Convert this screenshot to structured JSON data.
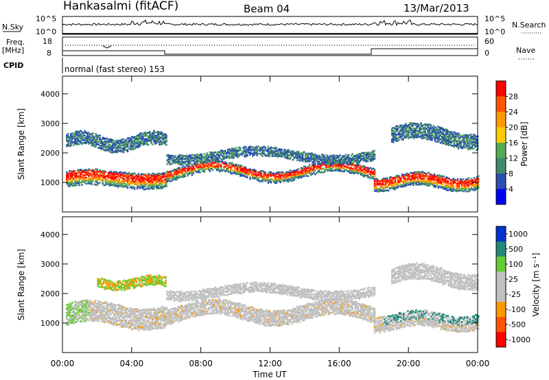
{
  "header": {
    "station": "Hankasalmi (fitACF)",
    "beam": "Beam 04",
    "date": "13/Mar/2013"
  },
  "noise_panel": {
    "left_label": "N.Sky",
    "right_label": "N.Search",
    "left_ticks": [
      "10^5",
      "10^0"
    ],
    "right_ticks": [
      "10^5",
      "10^0"
    ]
  },
  "freq_panel": {
    "left_label_1": "Freq.",
    "left_label_2": "[MHz]",
    "left_ticks": [
      "18",
      "8"
    ],
    "right_label": "Nave",
    "right_ticks": [
      "60",
      "0"
    ]
  },
  "cpid": {
    "label": "CPID",
    "text": "normal (fast stereo) 153"
  },
  "colors": {
    "power_scale": [
      "#0000ff",
      "#2b4fb0",
      "#3f8a6a",
      "#55aa55",
      "#ffcc00",
      "#ff9900",
      "#ff5500",
      "#ff0000"
    ],
    "velocity_scale": [
      "#ff0000",
      "#ff5500",
      "#ff9900",
      "#c0c0c0",
      "#c0c0c0",
      "#66cc33",
      "#228877",
      "#0033cc"
    ],
    "ground_scatter": "#c0c0c0"
  },
  "chart_data": [
    {
      "type": "heatmap",
      "title": "",
      "xlabel": "",
      "ylabel": "Slant Range [km]",
      "x_ticks": [
        "00:00",
        "04:00",
        "08:00",
        "12:00",
        "16:00",
        "20:00",
        "00:00"
      ],
      "y_ticks": [
        "1000",
        "2000",
        "3000",
        "4000"
      ],
      "ylim": [
        0,
        4600
      ],
      "colorbar_label": "Power [dB]",
      "colorbar_ticks": [
        "4",
        "8",
        "12",
        "16",
        "20",
        "24",
        "28"
      ],
      "clim": [
        0,
        32
      ]
    },
    {
      "type": "heatmap",
      "title": "",
      "xlabel": "Time UT",
      "ylabel": "Slant Range [km]",
      "x_ticks": [
        "00:00",
        "04:00",
        "08:00",
        "12:00",
        "16:00",
        "20:00",
        "00:00"
      ],
      "y_ticks": [
        "1000",
        "2000",
        "3000",
        "4000"
      ],
      "ylim": [
        0,
        4600
      ],
      "colorbar_label": "Velocity [m s⁻¹]",
      "colorbar_ticks": [
        "1000",
        "500",
        "100",
        "25",
        "-25",
        "-100",
        "-500",
        "-1000"
      ]
    }
  ]
}
